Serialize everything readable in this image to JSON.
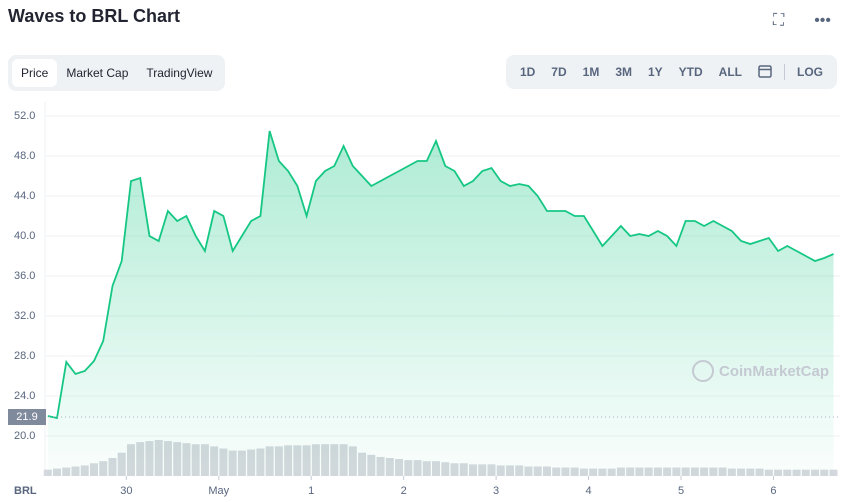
{
  "header": {
    "title": "Waves to BRL Chart"
  },
  "tabs": [
    "Price",
    "Market Cap",
    "TradingView"
  ],
  "ranges": [
    "1D",
    "7D",
    "1M",
    "3M",
    "1Y",
    "YTD",
    "ALL"
  ],
  "log": "LOG",
  "chart_data": {
    "type": "line",
    "currency": "BRL",
    "watermark": "CoinMarketCap",
    "current_price": {
      "value": 21.9,
      "label": "21.9"
    },
    "color": "#16c784",
    "x": [
      -0.85,
      -0.75,
      -0.65,
      -0.55,
      -0.45,
      -0.35,
      -0.25,
      -0.15,
      -0.05,
      0.05,
      0.15,
      0.25,
      0.35,
      0.45,
      0.55,
      0.65,
      0.75,
      0.85,
      0.95,
      1.05,
      1.15,
      1.25,
      1.35,
      1.45,
      1.55,
      1.65,
      1.75,
      1.85,
      1.95,
      2.05,
      2.15,
      2.25,
      2.35,
      2.45,
      2.55,
      2.65,
      2.75,
      2.85,
      2.95,
      3.05,
      3.15,
      3.25,
      3.35,
      3.45,
      3.55,
      3.65,
      3.75,
      3.85,
      3.95,
      4.05,
      4.15,
      4.25,
      4.35,
      4.45,
      4.55,
      4.65,
      4.75,
      4.85,
      4.95,
      5.05,
      5.15,
      5.25,
      5.35,
      5.45,
      5.55,
      5.65,
      5.75,
      5.85,
      5.95,
      6.05,
      6.15,
      6.25,
      6.35,
      6.45,
      6.55,
      6.65,
      6.75,
      6.85,
      6.95,
      7.05,
      7.15,
      7.25,
      7.35,
      7.45,
      7.55,
      7.65
    ],
    "series": [
      {
        "color": "#16c784",
        "values": [
          22.0,
          21.8,
          27.4,
          26.2,
          26.5,
          27.5,
          29.5,
          35.0,
          37.5,
          45.5,
          45.8,
          40.0,
          39.5,
          42.5,
          41.5,
          42.0,
          40.0,
          38.5,
          42.5,
          42.0,
          38.5,
          40.0,
          41.5,
          42.0,
          50.5,
          47.5,
          46.5,
          45.0,
          42.0,
          45.5,
          46.5,
          47.0,
          49.0,
          47.0,
          46.0,
          45.0,
          45.5,
          46.0,
          46.5,
          47.0,
          47.5,
          47.5,
          49.5,
          47.0,
          46.5,
          45.0,
          45.5,
          46.5,
          46.8,
          45.5,
          45.0,
          45.2,
          45.0,
          44.0,
          42.5,
          42.5,
          42.5,
          42.0,
          42.0,
          40.5,
          39.0,
          40.0,
          41.0,
          40.0,
          40.2,
          40.0,
          40.5,
          40.0,
          39.0,
          41.5,
          41.5,
          41.0,
          41.5,
          41.0,
          40.5,
          39.5,
          39.2,
          39.5,
          39.8,
          38.5,
          39.0,
          38.5,
          38.0,
          37.5,
          37.8,
          38.2
        ]
      }
    ],
    "volume": [
      6,
      7,
      8,
      9,
      10,
      12,
      14,
      17,
      22,
      30,
      32,
      33,
      34,
      33,
      32,
      31,
      30,
      30,
      28,
      26,
      24,
      24,
      25,
      26,
      28,
      28,
      29,
      29,
      29,
      30,
      30,
      30,
      30,
      28,
      22,
      20,
      18,
      17,
      16,
      15,
      15,
      14,
      14,
      13,
      12,
      12,
      11,
      11,
      11,
      10,
      10,
      10,
      9,
      9,
      9,
      8,
      8,
      8,
      7,
      7,
      7,
      7,
      8,
      8,
      8,
      8,
      8,
      8,
      8,
      8,
      8,
      8,
      8,
      8,
      7,
      7,
      7,
      7,
      6,
      6,
      6,
      6,
      6,
      6,
      6,
      6
    ],
    "xlim": [
      -0.88,
      7.72
    ],
    "xticks": [
      {
        "value": 0,
        "label": "30"
      },
      {
        "value": 1,
        "label": "May"
      },
      {
        "value": 2,
        "label": "1"
      },
      {
        "value": 3,
        "label": "2"
      },
      {
        "value": 4,
        "label": "3"
      },
      {
        "value": 5,
        "label": "4"
      },
      {
        "value": 6,
        "label": "5"
      },
      {
        "value": 7,
        "label": "6"
      }
    ],
    "ylim": [
      16,
      53.4
    ],
    "yticks": [
      {
        "value": 20,
        "label": "20.0"
      },
      {
        "value": 24,
        "label": "24.0"
      },
      {
        "value": 28,
        "label": "28.0"
      },
      {
        "value": 32,
        "label": "32.0"
      },
      {
        "value": 36,
        "label": "36.0"
      },
      {
        "value": 40,
        "label": "40.0"
      },
      {
        "value": 44,
        "label": "44.0"
      },
      {
        "value": 48,
        "label": "48.0"
      },
      {
        "value": 52,
        "label": "52.0"
      }
    ],
    "grid": true
  }
}
